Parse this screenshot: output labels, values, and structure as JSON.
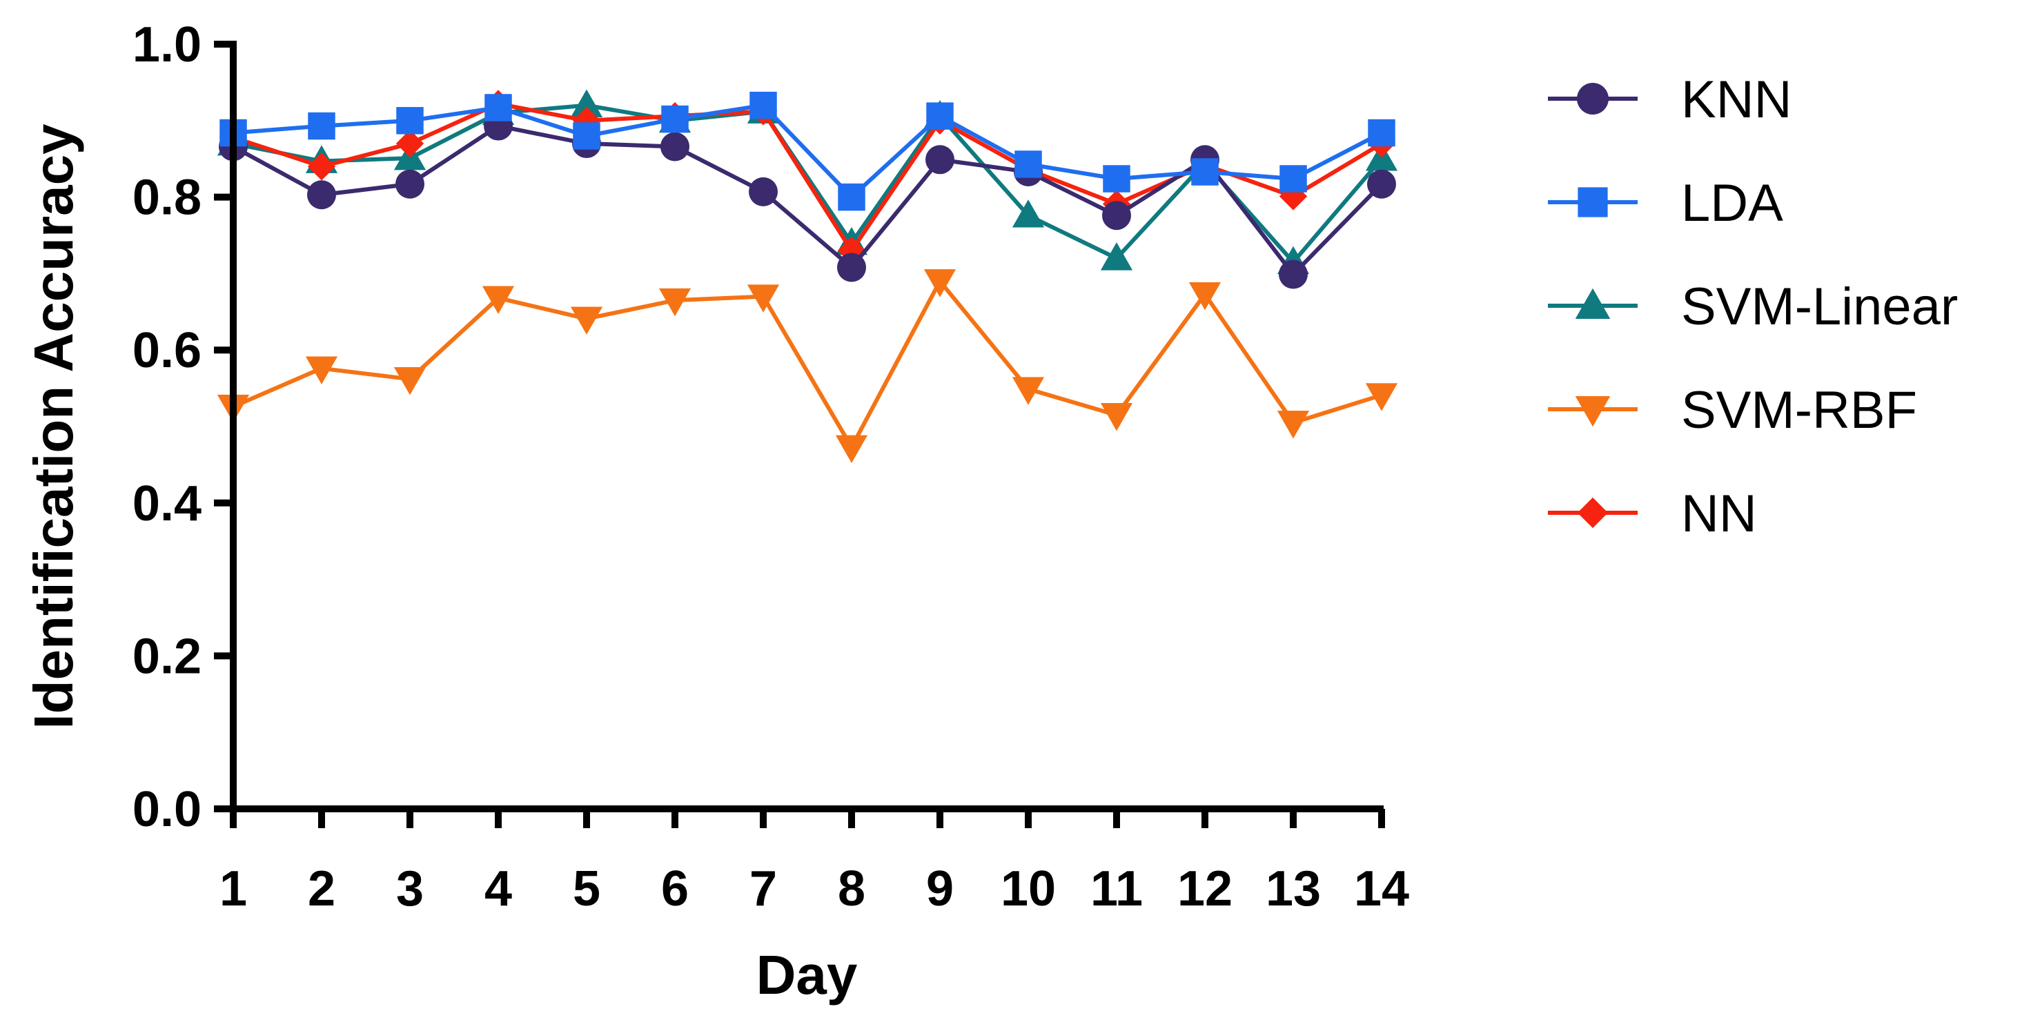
{
  "chart_data": {
    "type": "line",
    "title": "",
    "xlabel": "Day",
    "ylabel": "Identification Accuracy",
    "categories": [
      "1",
      "2",
      "3",
      "4",
      "5",
      "6",
      "7",
      "8",
      "9",
      "10",
      "11",
      "12",
      "13",
      "14"
    ],
    "ylim": [
      0,
      1.0
    ],
    "yticks": [
      "0.0",
      "0.2",
      "0.4",
      "0.6",
      "0.8",
      "1.0"
    ],
    "grid": false,
    "legend_position": "right",
    "series": [
      {
        "name": "KNN",
        "color": "#3b2a6e",
        "marker": "circle",
        "values": [
          0.866,
          0.803,
          0.817,
          0.893,
          0.87,
          0.866,
          0.807,
          0.708,
          0.849,
          0.833,
          0.776,
          0.849,
          0.699,
          0.817
        ]
      },
      {
        "name": "LDA",
        "color": "#1f6ef0",
        "marker": "square",
        "values": [
          0.884,
          0.893,
          0.9,
          0.917,
          0.88,
          0.902,
          0.92,
          0.8,
          0.906,
          0.843,
          0.824,
          0.833,
          0.824,
          0.884
        ]
      },
      {
        "name": "SVM-Linear",
        "color": "#0f7a80",
        "marker": "triangle-up",
        "values": [
          0.87,
          0.847,
          0.851,
          0.91,
          0.92,
          0.9,
          0.912,
          0.74,
          0.906,
          0.776,
          0.72,
          0.845,
          0.715,
          0.85
        ]
      },
      {
        "name": "SVM-RBF",
        "color": "#f57314",
        "marker": "triangle-down",
        "values": [
          0.526,
          0.576,
          0.562,
          0.668,
          0.641,
          0.665,
          0.67,
          0.473,
          0.69,
          0.549,
          0.515,
          0.673,
          0.505,
          0.541
        ]
      },
      {
        "name": "NN",
        "color": "#f5230f",
        "marker": "diamond",
        "values": [
          0.878,
          0.84,
          0.87,
          0.922,
          0.9,
          0.906,
          0.912,
          0.73,
          0.9,
          0.836,
          0.791,
          0.842,
          0.801,
          0.87
        ]
      }
    ]
  }
}
